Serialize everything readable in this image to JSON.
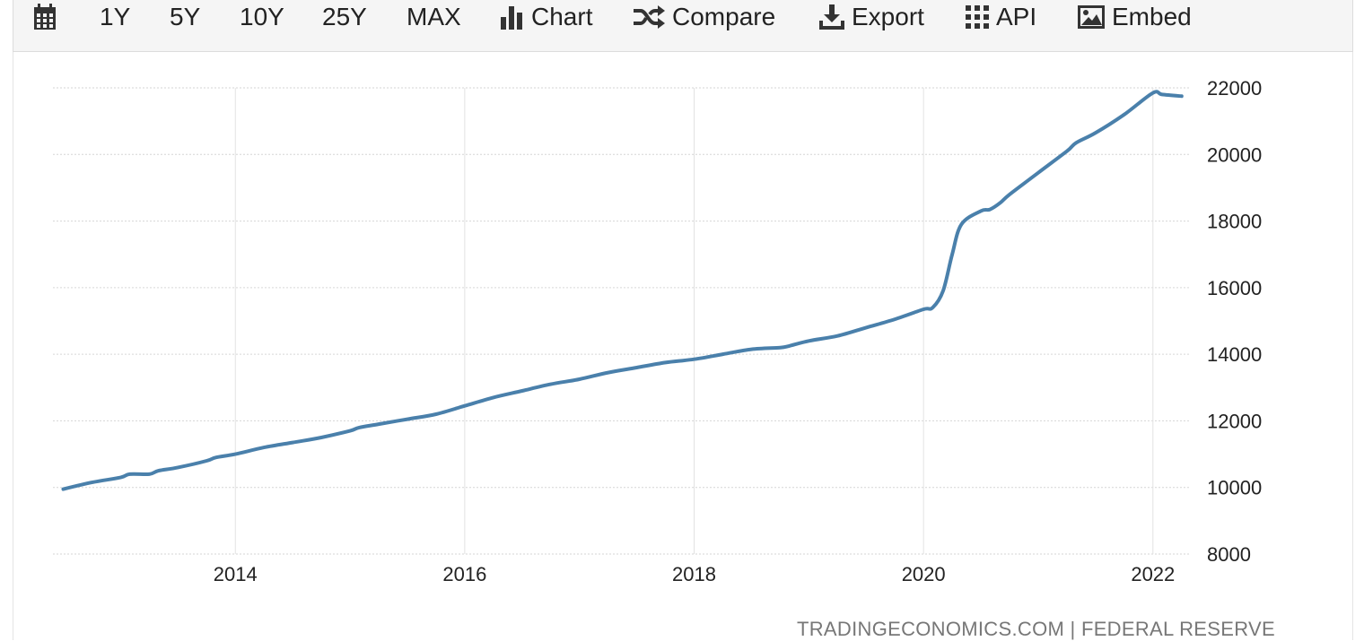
{
  "toolbar": {
    "ranges": [
      "1Y",
      "5Y",
      "10Y",
      "25Y",
      "MAX"
    ],
    "chart_label": "Chart",
    "compare_label": "Compare",
    "export_label": "Export",
    "api_label": "API",
    "embed_label": "Embed"
  },
  "source": "TRADINGECONOMICS.COM | FEDERAL RESERVE",
  "chart_data": {
    "type": "line",
    "title": "",
    "xlabel": "",
    "ylabel": "",
    "xlim": [
      2012.41,
      2022.33
    ],
    "ylim": [
      8000,
      22000
    ],
    "x_ticks": [
      "2014",
      "2016",
      "2018",
      "2020",
      "2022"
    ],
    "y_ticks": [
      "22000",
      "20000",
      "18000",
      "16000",
      "14000",
      "12000",
      "10000",
      "8000"
    ],
    "y_axis_position": "right",
    "grid": true,
    "legend": "none",
    "line_color": "#4a80ab",
    "series": [
      {
        "x": [
          2012.5,
          2012.75,
          2013.0,
          2013.08,
          2013.25,
          2013.33,
          2013.5,
          2013.75,
          2013.83,
          2014.0,
          2014.25,
          2014.5,
          2014.75,
          2015.0,
          2015.08,
          2015.25,
          2015.5,
          2015.75,
          2016.0,
          2016.25,
          2016.5,
          2016.75,
          2017.0,
          2017.25,
          2017.5,
          2017.75,
          2018.0,
          2018.25,
          2018.5,
          2018.75,
          2018.83,
          2019.0,
          2019.25,
          2019.5,
          2019.75,
          2020.0,
          2020.08,
          2020.17,
          2020.25,
          2020.33,
          2020.5,
          2020.58,
          2020.67,
          2020.75,
          2021.0,
          2021.25,
          2021.33,
          2021.5,
          2021.75,
          2022.0,
          2022.08,
          2022.25
        ],
        "values": [
          9950,
          10150,
          10300,
          10400,
          10400,
          10500,
          10600,
          10800,
          10900,
          11000,
          11200,
          11350,
          11500,
          11700,
          11800,
          11900,
          12050,
          12200,
          12450,
          12700,
          12900,
          13100,
          13250,
          13450,
          13600,
          13750,
          13850,
          14000,
          14150,
          14200,
          14250,
          14400,
          14550,
          14800,
          15050,
          15350,
          15400,
          15900,
          17000,
          17900,
          18300,
          18350,
          18550,
          18800,
          19450,
          20100,
          20350,
          20650,
          21200,
          21850,
          21800,
          21750
        ]
      }
    ]
  }
}
